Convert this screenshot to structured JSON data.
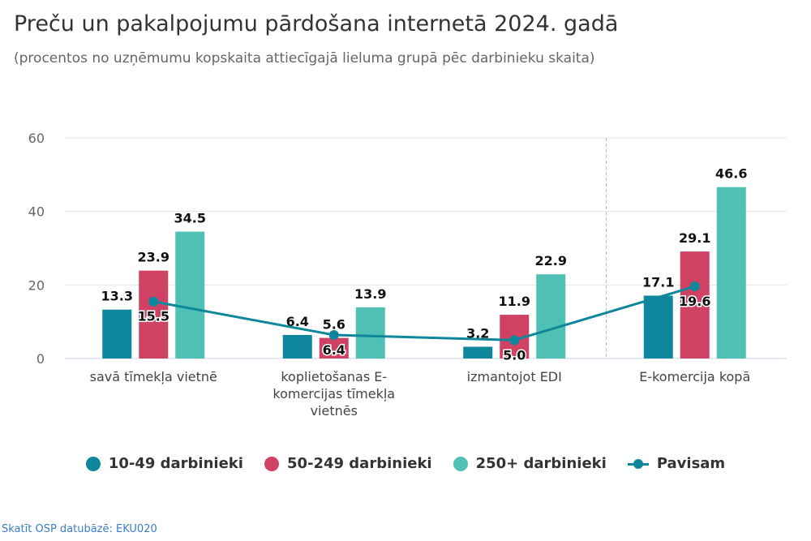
{
  "title": "Preču un pakalpojumu pārdošana internetā 2024. gadā",
  "subtitle": "(procentos no uzņēmumu kopskaita attiecīgajā lieluma grupā pēc darbinieku skaita)",
  "credit": "Skatīt OSP datubāzē: EKU020",
  "chart_data": {
    "type": "bar",
    "categories": [
      [
        "savā tīmekļa vietnē"
      ],
      [
        "koplietošanas E-",
        "komercijas tīmekļa",
        "vietnēs"
      ],
      [
        "izmantojot EDI"
      ],
      [
        "E-komercija kopā"
      ]
    ],
    "series": [
      {
        "name": "10-49 darbinieki",
        "type": "bar",
        "color": "#0e879c",
        "values": [
          13.3,
          6.4,
          3.2,
          17.1
        ]
      },
      {
        "name": "50-249 darbinieki",
        "type": "bar",
        "color": "#d04264",
        "values": [
          23.9,
          5.6,
          11.9,
          29.1
        ]
      },
      {
        "name": "250+ darbinieki",
        "type": "bar",
        "color": "#4fc1b4",
        "values": [
          34.5,
          13.9,
          22.9,
          46.6
        ]
      },
      {
        "name": "Pavisam",
        "type": "line",
        "color": "#0e879c",
        "values": [
          15.5,
          6.4,
          5.0,
          19.6
        ]
      }
    ],
    "yticks": [
      0,
      20,
      40,
      60
    ],
    "ylim": [
      0,
      60
    ],
    "grid": true,
    "separator_before_category": 3,
    "legend_position": "bottom",
    "data_labels": true
  }
}
